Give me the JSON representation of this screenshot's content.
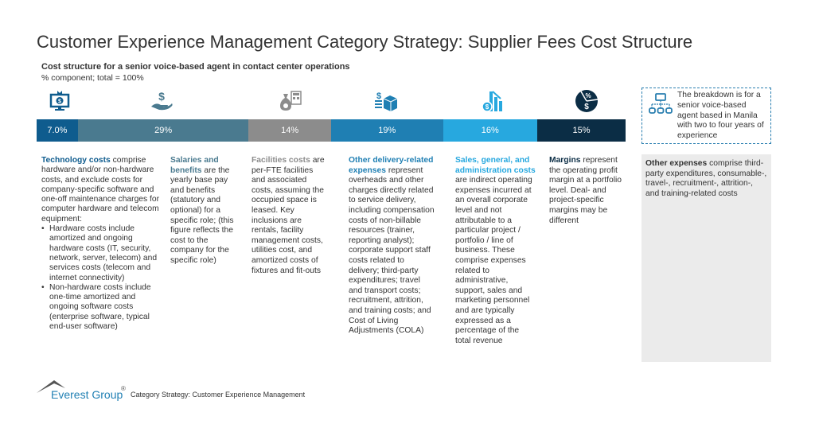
{
  "title": "Customer Experience Management Category Strategy: Supplier Fees Cost Structure",
  "subtitle": "Cost structure for a senior voice-based agent in contact center operations",
  "subtitle2": "% component; total = 100%",
  "segments": [
    {
      "label": "7.0%",
      "value": 7.0,
      "color": "#0f5c8e",
      "icon": "monitor-dollar-icon"
    },
    {
      "label": "29%",
      "value": 29,
      "color": "#4a7a8f",
      "icon": "hand-dollar-icon"
    },
    {
      "label": "14%",
      "value": 14,
      "color": "#8c8c8c",
      "icon": "money-bag-calculator-icon"
    },
    {
      "label": "19%",
      "value": 19,
      "color": "#1f7fb3",
      "icon": "dollar-box-icon"
    },
    {
      "label": "16%",
      "value": 16,
      "color": "#27a8df",
      "icon": "chart-dollar-down-icon"
    },
    {
      "label": "15%",
      "value": 15,
      "color": "#0b2d45",
      "icon": "percent-dollar-pie-icon"
    }
  ],
  "columns": [
    {
      "head": "Technology costs",
      "rest": " comprise hardware and/or non-hardware costs, and exclude costs for company-specific software and one-off maintenance charges for computer hardware and telecom equipment:",
      "bullets": [
        "Hardware costs include amortized and ongoing hardware costs (IT, security, network, server, telecom) and services costs (telecom and internet connectivity)",
        "Non-hardware costs include one-time amortized and ongoing software costs (enterprise software, typical end-user software)"
      ]
    },
    {
      "head": "Salaries and benefits",
      "rest": " are the yearly base pay and benefits (statutory and optional) for a specific role; (this figure reflects the cost to the company for the specific role)"
    },
    {
      "head": "Facilities costs",
      "rest": " are per-FTE facilities and associated costs, assuming the occupied space is leased. Key inclusions are rentals, facility management costs, utilities cost, and amortized costs of fixtures and fit-outs"
    },
    {
      "head": "Other delivery-related expenses",
      "rest": " represent overheads and other charges directly related to service delivery, including compensation costs of non-billable resources (trainer, reporting analyst); corporate support staff costs related to delivery; third-party expenditures; travel and transport costs; recruitment, attrition, and training costs; and Cost of Living Adjustments (COLA)"
    },
    {
      "head": "Sales, general, and administration costs",
      "rest": " are indirect operating expenses incurred at an overall corporate level and not attributable to a particular project / portfolio / line of business. These comprise expenses related to administrative, support, sales and marketing personnel and are typically expressed as a percentage of the total revenue"
    },
    {
      "head": "Margins",
      "rest": " represent the operating profit margin at a portfolio level. Deal- and project-specific margins may be different"
    }
  ],
  "note": "The breakdown is for a senior voice-based agent based in Manila with two to four years of experience",
  "other": {
    "head": "Other expenses",
    "rest": " comprise third-party expenditures, consumable-, travel-, recruitment-, attrition-, and training-related costs"
  },
  "footer": {
    "brand": "Everest Group",
    "reg": "®",
    "text": "Category Strategy: Customer Experience Management"
  }
}
